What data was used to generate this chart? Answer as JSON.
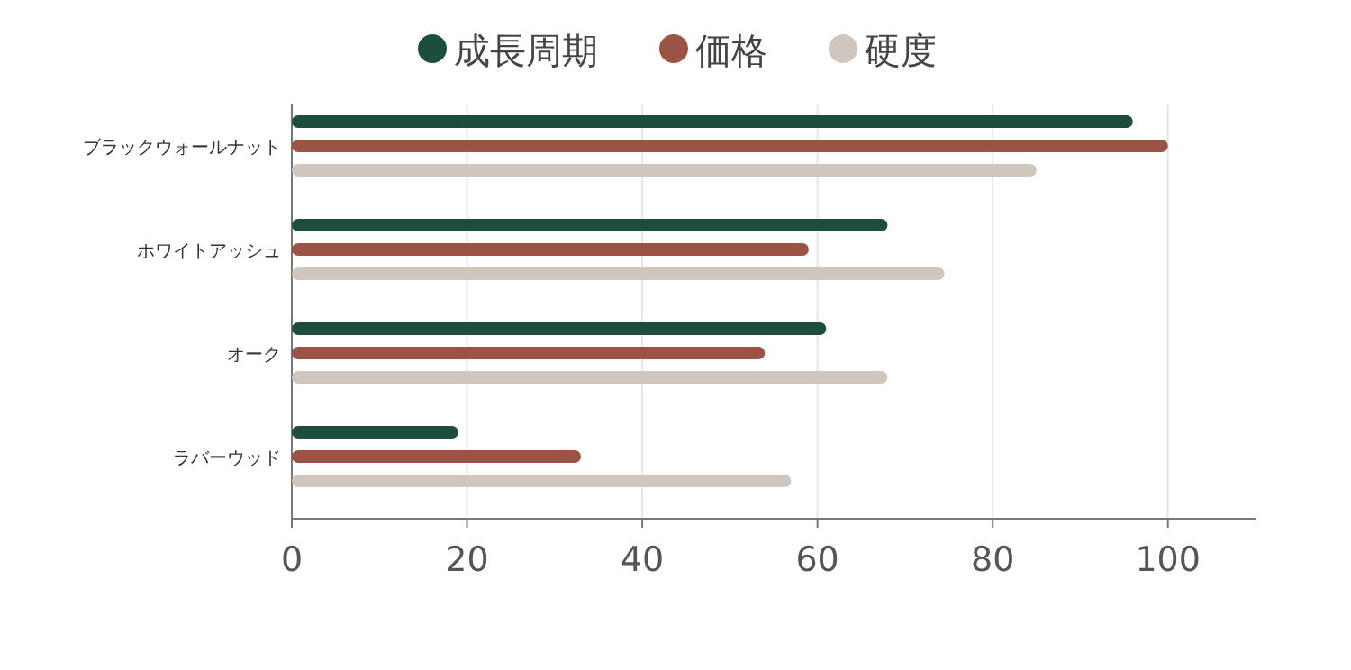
{
  "chart_data": {
    "type": "bar",
    "orientation": "horizontal",
    "categories": [
      "ブラックウォールナット",
      "ホワイトアッシュ",
      "オーク",
      "ラバーウッド"
    ],
    "series": [
      {
        "name": "成長周期",
        "color": "#1d4d3d",
        "values": [
          96,
          68,
          61,
          19
        ]
      },
      {
        "name": "価格",
        "color": "#9a5344",
        "values": [
          100,
          59,
          54,
          33
        ]
      },
      {
        "name": "硬度",
        "color": "#cfc6bd",
        "values": [
          85,
          74.5,
          68,
          57
        ]
      }
    ],
    "xlim": [
      0,
      110
    ],
    "xticks": [
      0,
      20,
      40,
      60,
      80,
      100
    ],
    "grid": "x",
    "legend": "top"
  }
}
